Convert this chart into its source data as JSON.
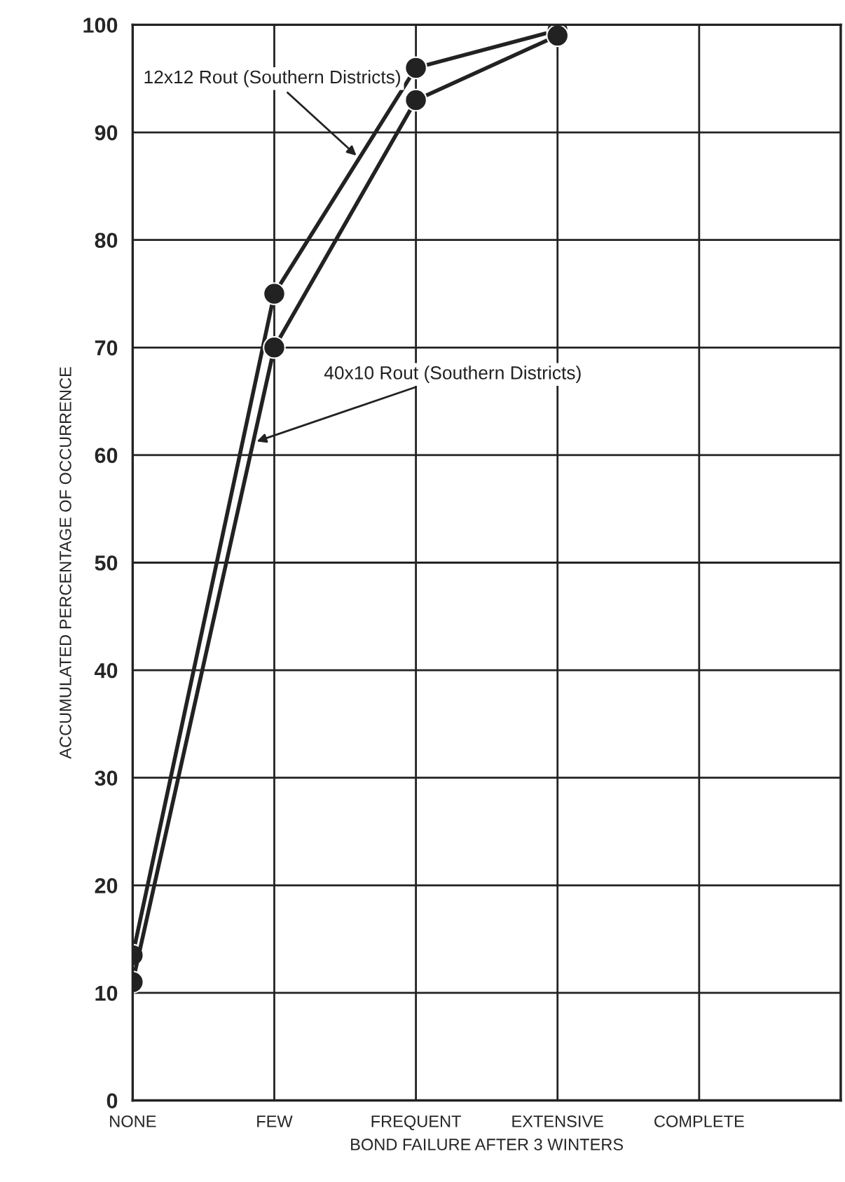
{
  "chart_data": {
    "type": "line",
    "xlabel": "BOND FAILURE AFTER 3 WINTERS",
    "ylabel": "ACCUMULATED PERCENTAGE OF OCCURRENCE",
    "categories": [
      "NONE",
      "FEW",
      "FREQUENT",
      "EXTENSIVE",
      "COMPLETE",
      null
    ],
    "series": [
      {
        "name": "12x12 Rout (Southern Districts)",
        "color": "#222222",
        "values": [
          13.5,
          75,
          96,
          99.5,
          null,
          null
        ]
      },
      {
        "name": "40x10 Rout (Southern Districts)",
        "color": "#222222",
        "values": [
          11,
          70,
          93,
          99,
          null,
          null
        ]
      }
    ],
    "ylim": [
      0,
      100
    ],
    "yticks": [
      0,
      10,
      20,
      30,
      40,
      50,
      60,
      70,
      80,
      90,
      100
    ],
    "grid": true,
    "legend": false,
    "marker": "circle",
    "line_style": "solid"
  }
}
